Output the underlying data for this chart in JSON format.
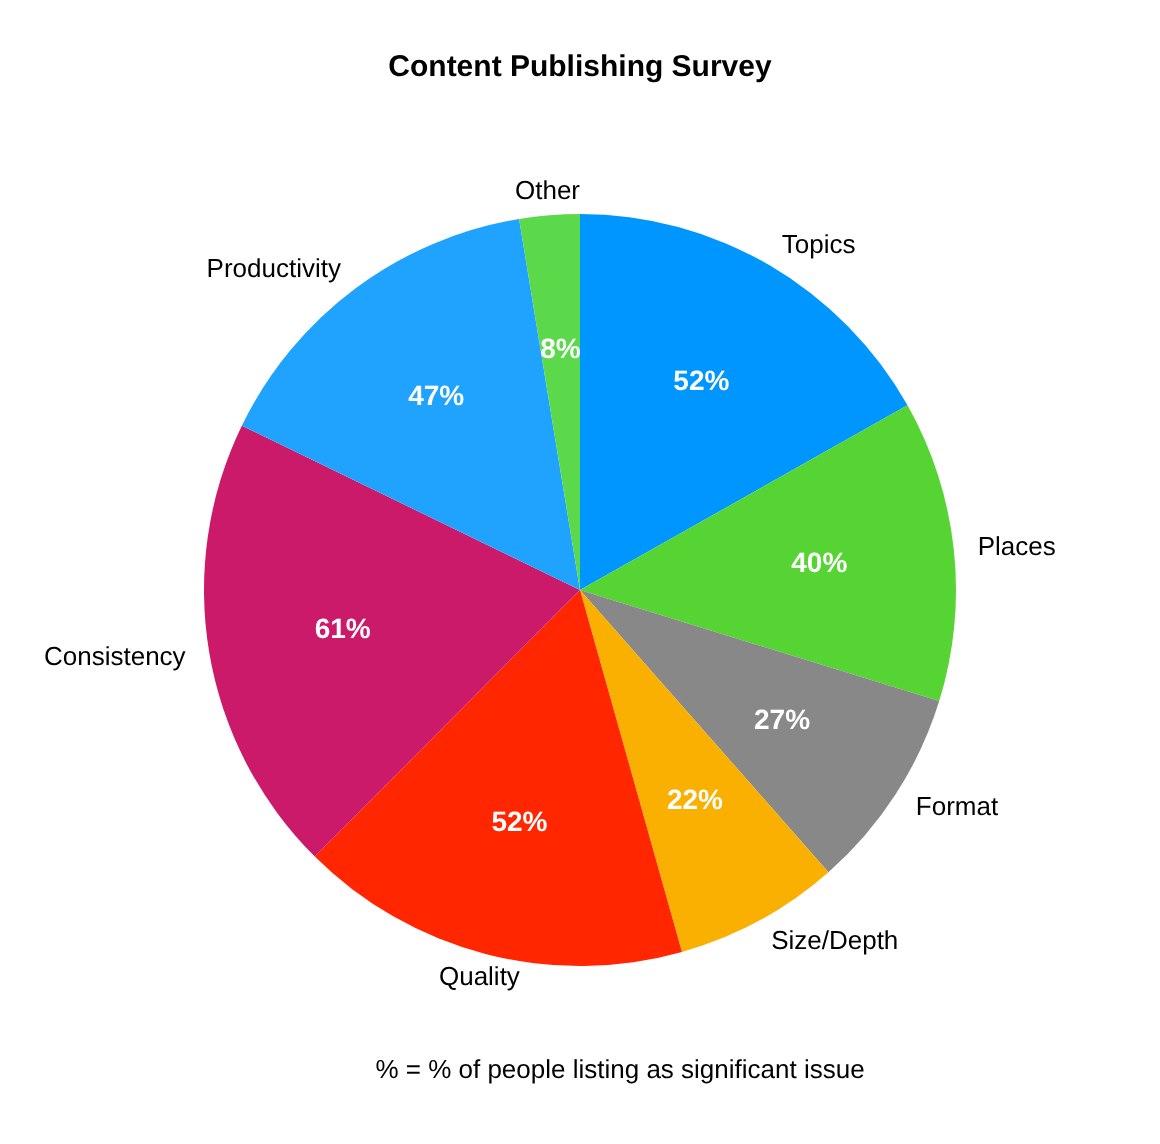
{
  "chart_data": {
    "type": "pie",
    "title": "Content Publishing Survey",
    "categories": [
      "Topics",
      "Places",
      "Format",
      "Size/Depth",
      "Quality",
      "Consistency",
      "Productivity",
      "Other"
    ],
    "values": [
      52,
      40,
      27,
      22,
      52,
      61,
      47,
      8
    ],
    "value_labels": [
      "52%",
      "40%",
      "27%",
      "22%",
      "52%",
      "61%",
      "47%",
      "8%"
    ],
    "colors": [
      "#0096ff",
      "#55d433",
      "#888888",
      "#f9b000",
      "#ff2600",
      "#cc1a6b",
      "#1fa3ff",
      "#5bd94a"
    ],
    "annotations": [
      "% = % of people listing as significant issue"
    ],
    "legend": false
  }
}
